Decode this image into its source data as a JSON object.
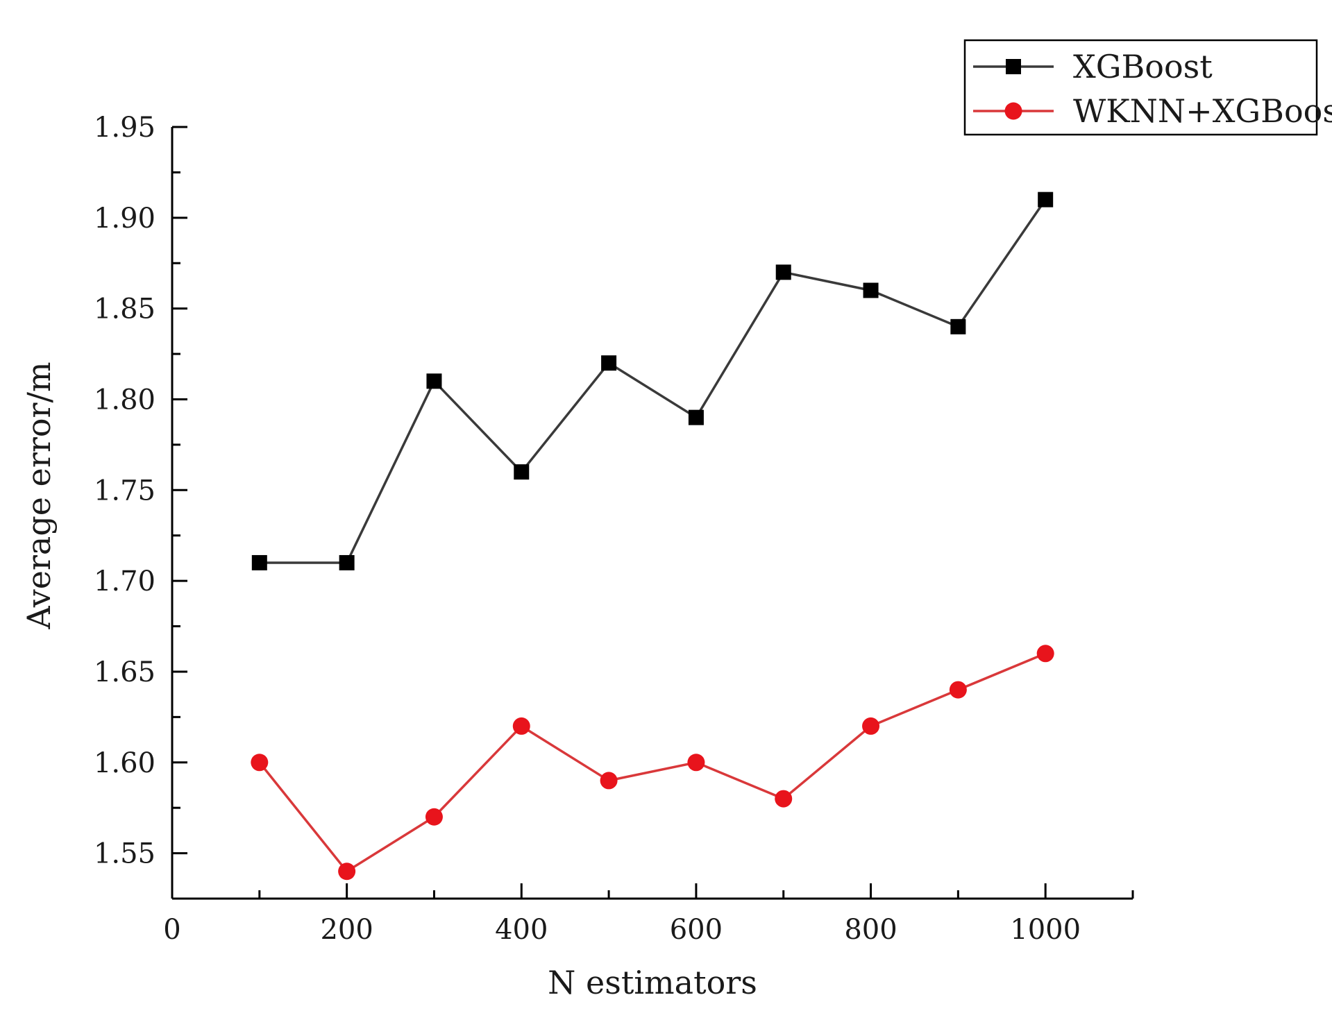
{
  "chart_data": {
    "type": "line",
    "title": "",
    "xlabel": "N estimators",
    "ylabel": "Average error/m",
    "xlim": [
      0,
      1100
    ],
    "ylim": [
      1.525,
      1.95
    ],
    "x_ticks": [
      0,
      200,
      400,
      600,
      800,
      1000
    ],
    "x_tick_labels": [
      "0",
      "200",
      "400",
      "600",
      "800",
      "1000"
    ],
    "y_ticks": [
      1.55,
      1.6,
      1.65,
      1.7,
      1.75,
      1.8,
      1.85,
      1.9,
      1.95
    ],
    "y_tick_labels": [
      "1.55",
      "1.60",
      "1.65",
      "1.70",
      "1.75",
      "1.80",
      "1.85",
      "1.90",
      "1.95"
    ],
    "grid": false,
    "legend_position": "top-right",
    "x": [
      100,
      200,
      300,
      400,
      500,
      600,
      700,
      800,
      900,
      1000
    ],
    "series": [
      {
        "name": "XGBoost",
        "marker": "square",
        "line_color": "#3a3a3a",
        "marker_color": "#000000",
        "values": [
          1.71,
          1.71,
          1.81,
          1.76,
          1.82,
          1.79,
          1.87,
          1.86,
          1.84,
          1.91
        ]
      },
      {
        "name": "WKNN+XGBoost",
        "marker": "circle",
        "line_color": "#d9383a",
        "marker_color": "#e8141c",
        "values": [
          1.6,
          1.54,
          1.57,
          1.62,
          1.59,
          1.6,
          1.58,
          1.62,
          1.64,
          1.66
        ]
      }
    ]
  }
}
